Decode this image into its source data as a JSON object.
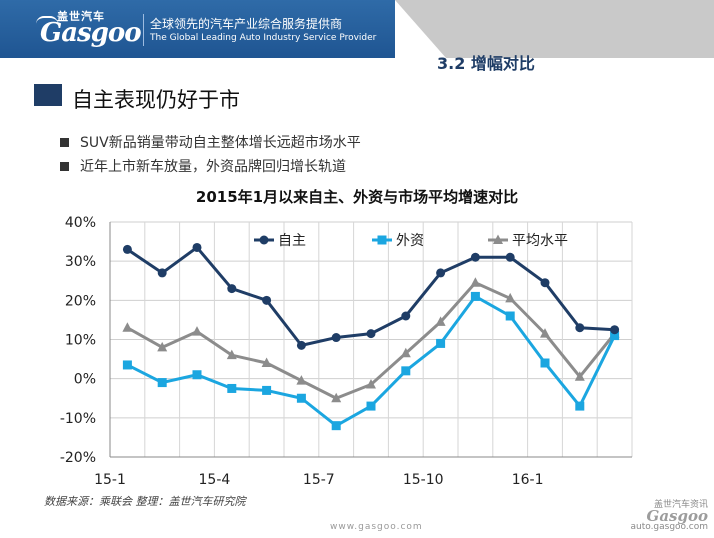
{
  "header": {
    "logo_cn": "盖世汽车",
    "logo_en": "Gasgoo",
    "tagline_cn": "全球领先的汽车产业综合服务提供商",
    "tagline_en": "The Global Leading Auto Industry Service Provider",
    "section_label": "3.2  增幅对比",
    "colors": {
      "header_blue": "#2460a0",
      "header_grey": "#c9c9c9",
      "accent_dark": "#1f3d66"
    }
  },
  "slide": {
    "title": "自主表现仍好于市",
    "bullets": [
      "SUV新品销量带动自主整体增长远超市场水平",
      "近年上市新车放量，外资品牌回归增长轨道"
    ]
  },
  "chart_data": {
    "type": "line",
    "title": "2015年1月以来自主、外资与市场平均增速对比",
    "x_tick_labels": [
      "15-1",
      "15-4",
      "15-7",
      "15-10",
      "16-1"
    ],
    "x_tick_indices": [
      0,
      3,
      6,
      9,
      12
    ],
    "categories": [
      "15-1",
      "15-2",
      "15-3",
      "15-4",
      "15-5",
      "15-6",
      "15-7",
      "15-8",
      "15-9",
      "15-10",
      "15-11",
      "15-12",
      "16-1",
      "16-2",
      "16-3"
    ],
    "ylim": [
      -20,
      40
    ],
    "y_ticks": [
      -20,
      -10,
      0,
      10,
      20,
      30,
      40
    ],
    "y_tick_labels": [
      "-20%",
      "-10%",
      "0%",
      "10%",
      "20%",
      "30%",
      "40%"
    ],
    "grid": true,
    "legend_position": "top",
    "series": [
      {
        "name": "自主",
        "marker": "circle",
        "color": "#1f3d66",
        "values": [
          33,
          27,
          33.5,
          23,
          20,
          8.5,
          10.5,
          11.5,
          16,
          27,
          31,
          31,
          24.5,
          13,
          12.5
        ]
      },
      {
        "name": "外资",
        "marker": "square",
        "color": "#1ba6e0",
        "values": [
          3.5,
          -1,
          1,
          -2.5,
          -3,
          -5,
          -12,
          -7,
          2,
          9,
          21,
          16,
          4,
          -7,
          11
        ]
      },
      {
        "name": "平均水平",
        "marker": "triangle",
        "color": "#8c8c8c",
        "values": [
          13,
          8,
          12,
          6,
          4,
          -0.5,
          -5,
          -1.5,
          6.5,
          14.5,
          24.5,
          20.5,
          11.5,
          0.5,
          11.5
        ]
      }
    ]
  },
  "footer": {
    "source": "数据来源：乘联会    整理：盖世汽车研究院",
    "url": "www.gasgoo.com",
    "watermark_cn": "盖世汽车资讯",
    "watermark_logo": "Gasgoo",
    "watermark_url": "auto.gasgoo.com"
  }
}
